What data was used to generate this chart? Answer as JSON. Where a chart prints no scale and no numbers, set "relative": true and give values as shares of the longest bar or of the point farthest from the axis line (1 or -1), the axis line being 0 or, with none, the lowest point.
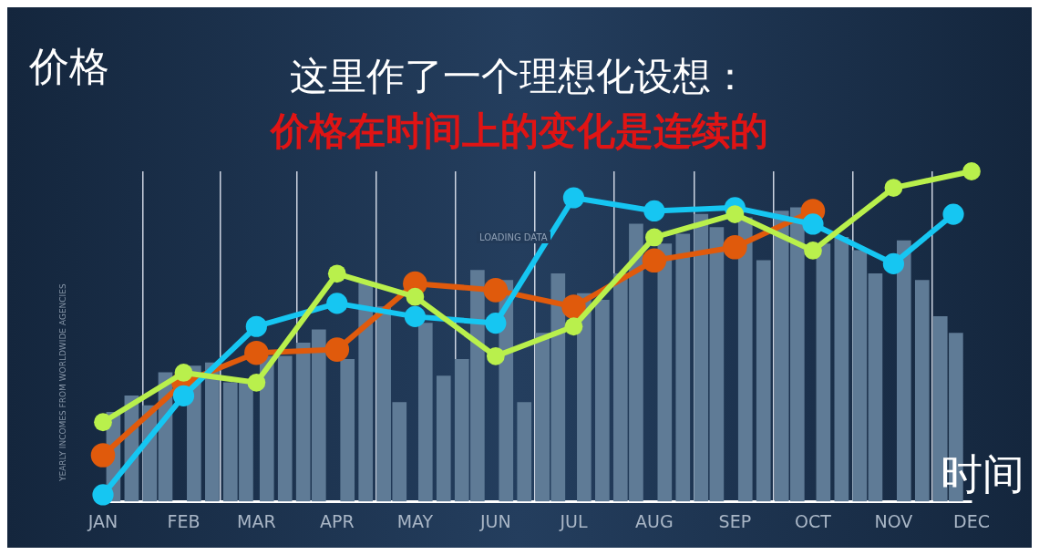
{
  "chart_data": {
    "type": "line",
    "relative": true,
    "title": "这里作了一个理想化设想：",
    "subtitle": "价格在时间上的变化是连续的",
    "ylabel": "价格",
    "xlabel": "时间",
    "annotations": [
      "YEARLY INCOMES FROM WORLDWIDE AGENCIES",
      "LOADING DATA"
    ],
    "xlim": [
      "--01-01",
      "--12-01"
    ],
    "xticks": [
      {
        "value": "--01-01",
        "label": "JAN"
      },
      {
        "value": "--02-01",
        "label": "FEB"
      },
      {
        "value": "--03-01",
        "label": "MAR"
      },
      {
        "value": "--04-01",
        "label": "APR"
      },
      {
        "value": "--05-01",
        "label": "MAY"
      },
      {
        "value": "--06-01",
        "label": "JUN"
      },
      {
        "value": "--07-01",
        "label": "JUL"
      },
      {
        "value": "--08-01",
        "label": "AUG"
      },
      {
        "value": "--09-01",
        "label": "SEP"
      },
      {
        "value": "--10-01",
        "label": "OCT"
      },
      {
        "value": "--11-01",
        "label": "NOV"
      },
      {
        "value": "--12-01",
        "label": "DEC"
      }
    ],
    "grid": "x",
    "marker": "circle",
    "x": [
      "--01-01",
      "--02-01",
      "--03-01",
      "--04-01",
      "--05-01",
      "--06-01",
      "--07-01",
      "--08-01",
      "--09-01",
      "--10-01",
      "--11-01",
      "--12-01"
    ],
    "series": [
      {
        "type": "bar",
        "color": "#5f7b96",
        "x": [
          "--01-05",
          "--01-12",
          "--01-19",
          "--01-25",
          "--02-05",
          "--02-12",
          "--02-19",
          "--02-25",
          "--03-05",
          "--03-12",
          "--03-19",
          "--03-25",
          "--04-05",
          "--04-12",
          "--04-19",
          "--04-25",
          "--05-05",
          "--05-12",
          "--05-19",
          "--05-25",
          "--06-05",
          "--06-12",
          "--06-19",
          "--06-25",
          "--07-05",
          "--07-12",
          "--07-19",
          "--07-25",
          "--08-05",
          "--08-12",
          "--08-19",
          "--08-25",
          "--09-05",
          "--09-12",
          "--09-19",
          "--09-25",
          "--10-05",
          "--10-12",
          "--10-19",
          "--10-25",
          "--11-05",
          "--11-12",
          "--11-19",
          "--11-25"
        ],
        "values": [
          0.27,
          0.32,
          0.29,
          0.39,
          0.41,
          0.42,
          0.36,
          0.36,
          0.44,
          0.44,
          0.48,
          0.52,
          0.43,
          0.66,
          0.59,
          0.3,
          0.54,
          0.38,
          0.43,
          0.7,
          0.67,
          0.3,
          0.51,
          0.69,
          0.63,
          0.61,
          0.69,
          0.84,
          0.78,
          0.81,
          0.87,
          0.83,
          0.86,
          0.73,
          0.88,
          0.89,
          0.78,
          0.8,
          0.76,
          0.69,
          0.79,
          0.67,
          0.56,
          0.51
        ]
      },
      {
        "color": "#e05a0c",
        "x": [
          "--01-01",
          "--02-01",
          "--03-01",
          "--04-01",
          "--05-01",
          "--06-01",
          "--07-01",
          "--08-01",
          "--09-01",
          "--10-01"
        ],
        "values": [
          0.14,
          0.36,
          0.45,
          0.46,
          0.66,
          0.64,
          0.59,
          0.73,
          0.77,
          0.88
        ]
      },
      {
        "color": "#16c6f2",
        "x": [
          "--01-01",
          "--02-01",
          "--03-01",
          "--04-01",
          "--05-01",
          "--06-01",
          "--07-01",
          "--08-01",
          "--09-01",
          "--10-01",
          "--11-01",
          "--11-24"
        ],
        "values": [
          0.02,
          0.32,
          0.53,
          0.6,
          0.56,
          0.54,
          0.92,
          0.88,
          0.89,
          0.84,
          0.72,
          0.87
        ]
      },
      {
        "color": "#b9f04c",
        "values": [
          0.24,
          0.39,
          0.36,
          0.69,
          0.62,
          0.44,
          0.53,
          0.8,
          0.87,
          0.76,
          0.95,
          1
        ]
      }
    ]
  }
}
